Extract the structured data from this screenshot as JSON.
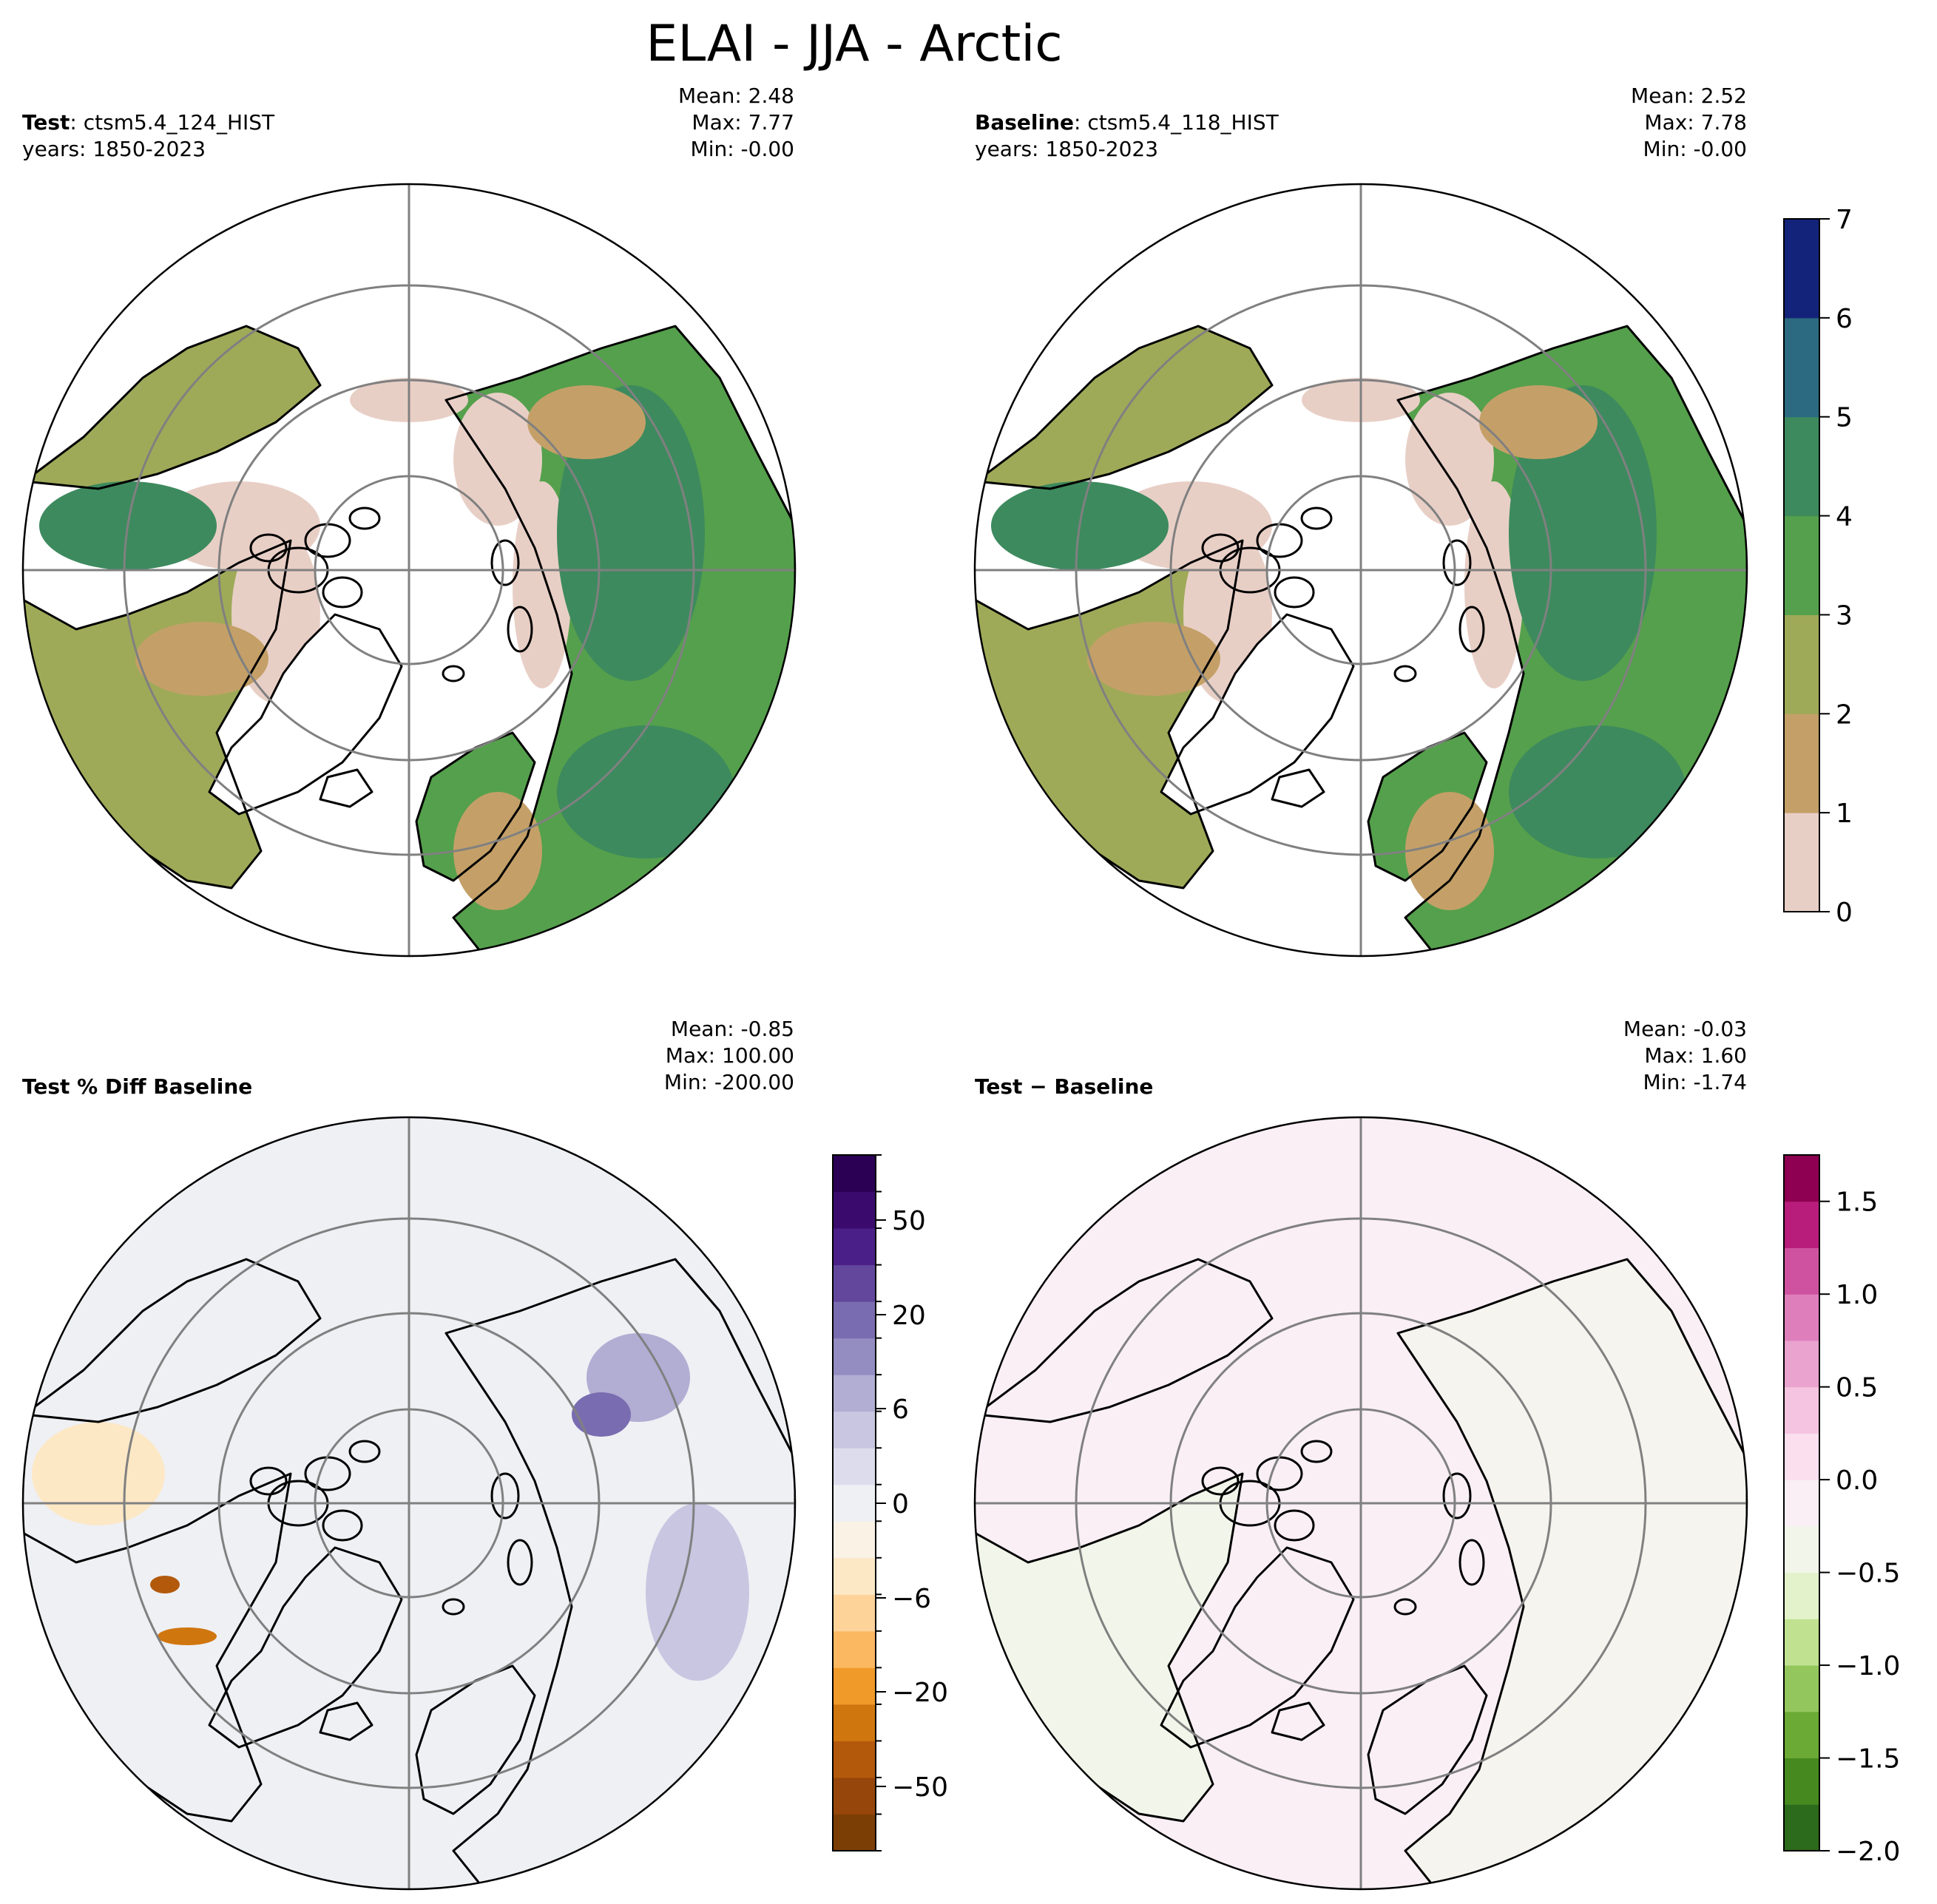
{
  "figure": {
    "title": "ELAI - JJA - Arctic"
  },
  "panels": [
    {
      "id": "test",
      "label_bold": "Test",
      "label_rest": ": ctsm5.4_124_HIST",
      "years": "years: 1850-2023",
      "mean": "Mean:  2.48",
      "max": "Max:  7.77",
      "min": "Min: -0.00"
    },
    {
      "id": "baseline",
      "label_bold": "Baseline",
      "label_rest": ": ctsm5.4_118_HIST",
      "years": "years: 1850-2023",
      "mean": "Mean:  2.52",
      "max": "Max:  7.78",
      "min": "Min: -0.00"
    },
    {
      "id": "pctdiff",
      "label_bold": "Test % Diff Baseline",
      "label_rest": "",
      "years": "",
      "mean": "Mean: -0.85",
      "max": "Max: 100.00",
      "min": "Min: -200.00"
    },
    {
      "id": "diff",
      "label_bold": "Test − Baseline",
      "label_rest": "",
      "years": "",
      "mean": "Mean: -0.03",
      "max": "Max:  1.60",
      "min": "Min: -1.74"
    }
  ],
  "colorbars": {
    "elai": {
      "ticks": [
        "0",
        "1",
        "2",
        "3",
        "4",
        "5",
        "6",
        "7"
      ],
      "colors": [
        "#e8cfc6",
        "#c4a068",
        "#9faa58",
        "#55a04c",
        "#3d8a5e",
        "#2b6a80",
        "#13237a"
      ]
    },
    "pct": {
      "ticks": [
        "50",
        "20",
        "6",
        "0",
        "−6",
        "−20",
        "−50"
      ],
      "colors": [
        "#7b3e05",
        "#96460a",
        "#b3590c",
        "#d0760f",
        "#f09a2a",
        "#fbb860",
        "#fdd39a",
        "#fde8c6",
        "#f9f2e5",
        "#eef0f4",
        "#dcdcec",
        "#c8c6e1",
        "#b1add3",
        "#938dc2",
        "#7a6cb0",
        "#62479c",
        "#4b1f88",
        "#3a0b6d",
        "#2b0054"
      ]
    },
    "diff": {
      "ticks": [
        "1.5",
        "1.0",
        "0.5",
        "0.0",
        "−0.5",
        "−1.0",
        "−1.5",
        "−2.0"
      ],
      "colors": [
        "#2c6a1c",
        "#45891f",
        "#6aaa35",
        "#93c75d",
        "#c0e290",
        "#e3f2cb",
        "#f2f6ea",
        "#f9eff4",
        "#fbdfee",
        "#f5c4e0",
        "#eaa3cf",
        "#de7fbb",
        "#ce529f",
        "#b81d7b",
        "#8e0152"
      ]
    }
  },
  "chart_data": [
    {
      "type": "heatmap",
      "title": "Test: ctsm5.4_124_HIST",
      "projection": "north-polar-stereographic",
      "region": "Arctic",
      "variable": "ELAI",
      "season": "JJA",
      "years": "1850-2023",
      "colorbar": {
        "levels": [
          0,
          1,
          2,
          3,
          4,
          5,
          6,
          7
        ],
        "range": [
          0,
          7
        ]
      },
      "stats": {
        "mean": 2.48,
        "max": 7.77,
        "min": -0.0
      }
    },
    {
      "type": "heatmap",
      "title": "Baseline: ctsm5.4_118_HIST",
      "projection": "north-polar-stereographic",
      "region": "Arctic",
      "variable": "ELAI",
      "season": "JJA",
      "years": "1850-2023",
      "colorbar": {
        "levels": [
          0,
          1,
          2,
          3,
          4,
          5,
          6,
          7
        ],
        "range": [
          0,
          7
        ]
      },
      "stats": {
        "mean": 2.52,
        "max": 7.78,
        "min": -0.0
      }
    },
    {
      "type": "heatmap",
      "title": "Test % Diff Baseline",
      "projection": "north-polar-stereographic",
      "colorbar": {
        "ticks": [
          -50,
          -20,
          -6,
          0,
          6,
          20,
          50
        ]
      },
      "stats": {
        "mean": -0.85,
        "max": 100.0,
        "min": -200.0
      }
    },
    {
      "type": "heatmap",
      "title": "Test − Baseline",
      "projection": "north-polar-stereographic",
      "colorbar": {
        "ticks": [
          -2.0,
          -1.5,
          -1.0,
          -0.5,
          0.0,
          0.5,
          1.0,
          1.5
        ],
        "range": [
          -2.0,
          1.75
        ]
      },
      "stats": {
        "mean": -0.03,
        "max": 1.6,
        "min": -1.74
      }
    }
  ]
}
